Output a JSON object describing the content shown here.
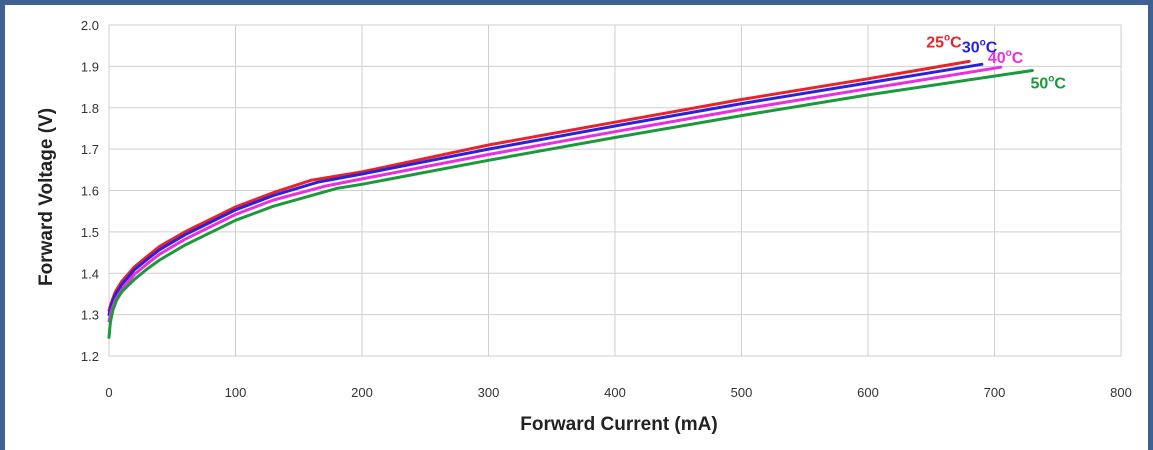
{
  "chart_data": {
    "type": "line",
    "xlabel": "Forward Current (mA)",
    "ylabel": "Forward Voltage (V)",
    "xlim": [
      0,
      800
    ],
    "ylim": [
      1.2,
      2.0
    ],
    "xticks": [
      "0",
      "100",
      "200",
      "300",
      "400",
      "500",
      "600",
      "700",
      "800"
    ],
    "yticks": [
      "1.2",
      "1.3",
      "1.4",
      "1.5",
      "1.6",
      "1.7",
      "1.8",
      "1.9",
      "2.0"
    ],
    "grid": true,
    "legend": "inline labels at line ends",
    "series": [
      {
        "name": "25°C",
        "label_main": "25",
        "label_unit": "C",
        "color": "#e8232a",
        "points": [
          [
            0,
            1.31
          ],
          [
            2,
            1.33
          ],
          [
            5,
            1.355
          ],
          [
            10,
            1.38
          ],
          [
            20,
            1.415
          ],
          [
            30,
            1.44
          ],
          [
            40,
            1.465
          ],
          [
            60,
            1.5
          ],
          [
            80,
            1.53
          ],
          [
            100,
            1.56
          ],
          [
            130,
            1.595
          ],
          [
            160,
            1.625
          ],
          [
            200,
            1.645
          ],
          [
            300,
            1.71
          ],
          [
            400,
            1.765
          ],
          [
            500,
            1.82
          ],
          [
            600,
            1.87
          ],
          [
            680,
            1.912
          ]
        ]
      },
      {
        "name": "30°C",
        "label_main": "30",
        "label_unit": "C",
        "color": "#2b22d8",
        "points": [
          [
            0,
            1.3
          ],
          [
            2,
            1.325
          ],
          [
            5,
            1.348
          ],
          [
            10,
            1.372
          ],
          [
            20,
            1.408
          ],
          [
            30,
            1.433
          ],
          [
            40,
            1.457
          ],
          [
            60,
            1.493
          ],
          [
            80,
            1.523
          ],
          [
            100,
            1.553
          ],
          [
            130,
            1.588
          ],
          [
            165,
            1.62
          ],
          [
            200,
            1.64
          ],
          [
            300,
            1.7
          ],
          [
            400,
            1.756
          ],
          [
            500,
            1.81
          ],
          [
            600,
            1.86
          ],
          [
            690,
            1.905
          ]
        ]
      },
      {
        "name": "40°C",
        "label_main": "40",
        "label_unit": "C",
        "color": "#ea2ee0",
        "points": [
          [
            0,
            1.285
          ],
          [
            2,
            1.31
          ],
          [
            5,
            1.335
          ],
          [
            10,
            1.36
          ],
          [
            20,
            1.397
          ],
          [
            30,
            1.422
          ],
          [
            40,
            1.446
          ],
          [
            60,
            1.482
          ],
          [
            80,
            1.512
          ],
          [
            100,
            1.542
          ],
          [
            130,
            1.577
          ],
          [
            170,
            1.61
          ],
          [
            200,
            1.628
          ],
          [
            300,
            1.687
          ],
          [
            400,
            1.742
          ],
          [
            500,
            1.796
          ],
          [
            600,
            1.846
          ],
          [
            705,
            1.898
          ]
        ]
      },
      {
        "name": "50°C",
        "label_main": "50",
        "label_unit": "C",
        "color": "#1a9a3a",
        "points": [
          [
            0,
            1.245
          ],
          [
            1,
            1.28
          ],
          [
            3,
            1.31
          ],
          [
            6,
            1.335
          ],
          [
            10,
            1.355
          ],
          [
            20,
            1.385
          ],
          [
            30,
            1.41
          ],
          [
            40,
            1.432
          ],
          [
            60,
            1.468
          ],
          [
            80,
            1.498
          ],
          [
            100,
            1.528
          ],
          [
            130,
            1.562
          ],
          [
            180,
            1.605
          ],
          [
            200,
            1.615
          ],
          [
            300,
            1.673
          ],
          [
            400,
            1.728
          ],
          [
            500,
            1.781
          ],
          [
            600,
            1.831
          ],
          [
            730,
            1.89
          ]
        ]
      }
    ]
  }
}
